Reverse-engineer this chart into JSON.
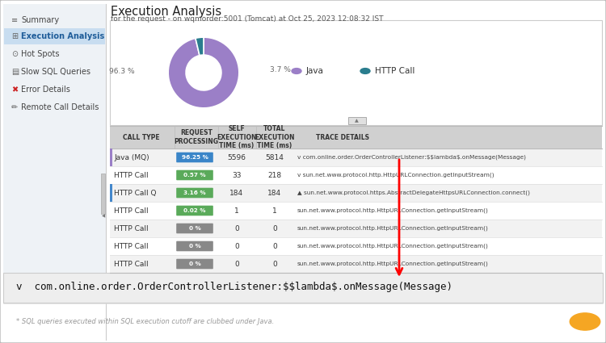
{
  "title": "Execution Analysis",
  "subtitle": "for the request - on wqmorder:5001 (Tomcat) at Oct 25, 2023 12:08:32 IST",
  "sidebar_items": [
    "Summary",
    "Execution Analysis",
    "Hot Spots",
    "Slow SQL Queries",
    "Error Details",
    "Remote Call Details"
  ],
  "sidebar_selected": "Execution Analysis",
  "sidebar_bg": "#eef2f6",
  "sidebar_selected_bg": "#c8ddf0",
  "donut_values": [
    96.3,
    3.7
  ],
  "donut_colors": [
    "#9b7fc7",
    "#2a7d8e"
  ],
  "legend_labels": [
    "Java",
    "HTTP Call"
  ],
  "legend_colors": [
    "#9b7fc7",
    "#2a7d8e"
  ],
  "table_rows": [
    [
      "Java (MQ)",
      "96.25 %",
      "5596",
      "5814",
      "v com.online.order.OrderControllerListener:$$lambda$.onMessage(Message)"
    ],
    [
      "HTTP Call",
      "0.57 %",
      "33",
      "218",
      "v sun.net.www.protocol.http.HttpURLConnection.getInputStream()"
    ],
    [
      "HTTP Call Q",
      "3.16 %",
      "184",
      "184",
      "▲ sun.net.www.protocol.https.AbstractDelegateHttpsURLConnection.connect()"
    ],
    [
      "HTTP Call",
      "0.02 %",
      "1",
      "1",
      "sun.net.www.protocol.http.HttpURLConnection.getInputStream()"
    ],
    [
      "HTTP Call",
      "0 %",
      "0",
      "0",
      "sun.net.www.protocol.http.HttpURLConnection.getInputStream()"
    ],
    [
      "HTTP Call",
      "0 %",
      "0",
      "0",
      "sun.net.www.protocol.http.HttpURLConnection.getInputStream()"
    ],
    [
      "HTTP Call",
      "0 %",
      "0",
      "0",
      "sun.net.www.protocol.http.HttpURLConnection.getInputStream()"
    ]
  ],
  "badge_colors": {
    "96.25 %": "#3a85c8",
    "0.57 %": "#5aaa5a",
    "3.16 %": "#5aaa5a",
    "0.02 %": "#5aaa5a",
    "0 %": "#888888"
  },
  "bottom_text": "v  com.online.order.OrderControllerListener:$$lambda$.onMessage(Message)",
  "footer_note": "* SQL queries executed within SQL execution cutoff are clubbed under Java.",
  "table_header_bg": "#d0d0d0",
  "table_row_bg_odd": "#f2f2f2",
  "table_row_bg_even": "#ffffff",
  "border_left_color": "#9b7fc7",
  "bottom_section_bg": "#eeeeee",
  "bottom_section_border": "#cccccc",
  "white_panel_bg": "#ffffff",
  "white_panel_border": "#cccccc"
}
